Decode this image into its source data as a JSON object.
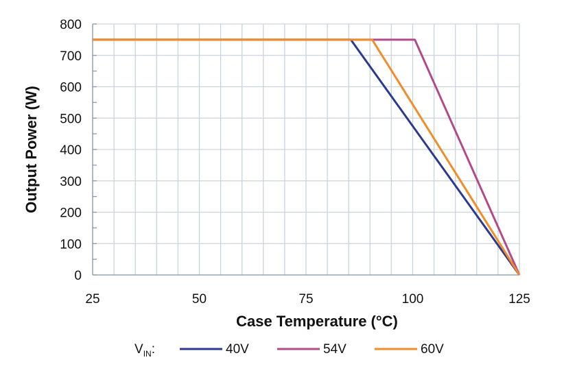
{
  "chart_data": {
    "type": "line",
    "xlabel": "Case Temperature (°C)",
    "ylabel": "Output Power (W)",
    "xlim": [
      25,
      125
    ],
    "ylim": [
      0,
      800
    ],
    "x_ticks": [
      25,
      50,
      75,
      100,
      125
    ],
    "y_ticks": [
      0,
      100,
      200,
      300,
      400,
      500,
      600,
      700,
      800
    ],
    "x_grid_step": 5,
    "y_minor_step": 50,
    "grid": true,
    "legend_position": "bottom",
    "legend": {
      "prefix_main": "V",
      "prefix_sub": "IN",
      "prefix_suffix": ":"
    },
    "series": [
      {
        "name": "40V",
        "color": "#2b3990",
        "x": [
          25,
          85.5,
          125
        ],
        "y": [
          750,
          750,
          0
        ]
      },
      {
        "name": "54V",
        "color": "#b04a8c",
        "x": [
          25,
          100.5,
          125
        ],
        "y": [
          750,
          750,
          0
        ]
      },
      {
        "name": "60V",
        "color": "#f28c28",
        "x": [
          25,
          90.5,
          125
        ],
        "y": [
          750,
          750,
          0
        ]
      }
    ]
  }
}
